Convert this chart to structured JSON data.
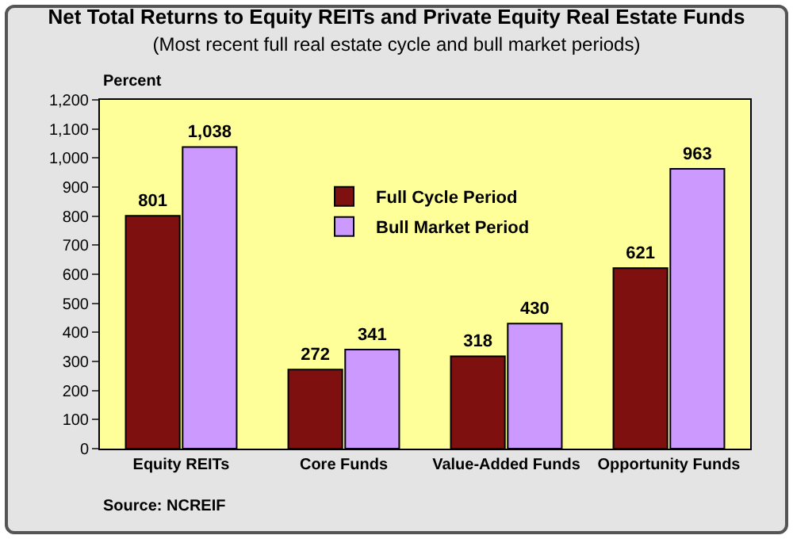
{
  "chart_data": {
    "type": "bar",
    "title": "Net Total Returns to Equity REITs and Private Equity Real Estate Funds",
    "subtitle": "(Most recent full real estate cycle and bull market periods)",
    "ylabel": "Percent",
    "categories": [
      "Equity REITs",
      "Core Funds",
      "Value-Added Funds",
      "Opportunity Funds"
    ],
    "series": [
      {
        "name": "Full Cycle Period",
        "color": "#7f1010",
        "values": [
          801,
          272,
          318,
          621
        ],
        "value_labels": [
          "801",
          "272",
          "318",
          "621"
        ]
      },
      {
        "name": "Bull Market Period",
        "color": "#cc99ff",
        "values": [
          1038,
          341,
          430,
          963
        ],
        "value_labels": [
          "1,038",
          "341",
          "430",
          "963"
        ]
      }
    ],
    "ylim": [
      0,
      1200
    ],
    "yticks": [
      0,
      100,
      200,
      300,
      400,
      500,
      600,
      700,
      800,
      900,
      {
        "value": 1000,
        "label": "1,000"
      },
      {
        "value": 1100,
        "label": "1,100"
      },
      {
        "value": 1200,
        "label": "1,200"
      }
    ],
    "grid": false,
    "legend": "center",
    "annotations": [
      "Source: NCREIF"
    ]
  }
}
